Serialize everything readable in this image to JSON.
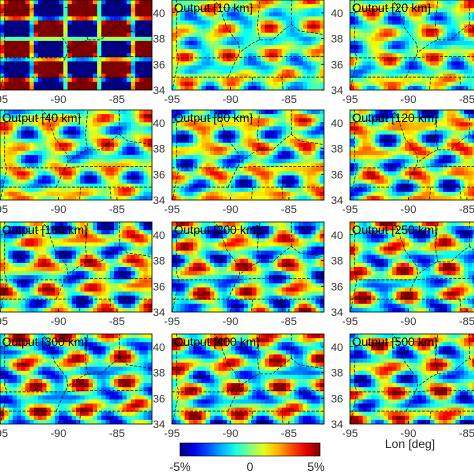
{
  "chart_data": {
    "type": "heatmap",
    "title": "",
    "xlabel": "Lon [deg]",
    "ylabel": "",
    "xlim": [
      -95,
      -82
    ],
    "ylim": [
      34,
      41
    ],
    "x_ticks": [
      -95,
      -90,
      -85
    ],
    "y_ticks": [
      34,
      36,
      38,
      40
    ],
    "grid": false,
    "colormap": "jet",
    "colorbar": {
      "min_label": "-5%",
      "mid_label": "0",
      "max_label": "5%",
      "min": -5,
      "max": 5,
      "unit": "%"
    },
    "panels": [
      {
        "label": "",
        "kind": "input-checkerboard"
      },
      {
        "label": "Output [10 km]",
        "kind": "output",
        "period_km": 10
      },
      {
        "label": "Output [20 km]",
        "kind": "output",
        "period_km": 20
      },
      {
        "label": "Output [40 km]",
        "kind": "output",
        "period_km": 40
      },
      {
        "label": "Output [80 km]",
        "kind": "output",
        "period_km": 80
      },
      {
        "label": "Output [120 km]",
        "kind": "output",
        "period_km": 120
      },
      {
        "label": "Output [160 km]",
        "kind": "output",
        "period_km": 160
      },
      {
        "label": "Output [200 km]",
        "kind": "output",
        "period_km": 200
      },
      {
        "label": "Output [250 km]",
        "kind": "output",
        "period_km": 250
      },
      {
        "label": "Output [300 km]",
        "kind": "output",
        "period_km": 300
      },
      {
        "label": "Output [400 km]",
        "kind": "output",
        "period_km": 400
      },
      {
        "label": "Output [500 km]",
        "kind": "output",
        "period_km": 500
      }
    ]
  }
}
